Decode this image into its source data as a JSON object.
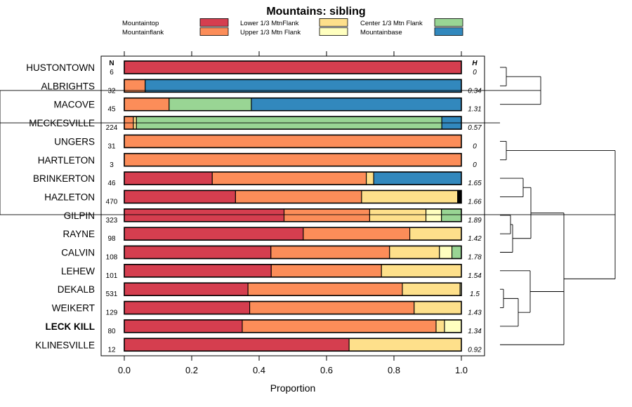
{
  "chart_data": {
    "type": "bar",
    "orientation": "horizontal",
    "stacked": true,
    "title": "Mountains: sibling",
    "xlabel": "Proportion",
    "xlim": [
      0,
      1
    ],
    "xticks": [
      "0.0",
      "0.2",
      "0.4",
      "0.6",
      "0.8",
      "1.0"
    ],
    "xtick_values": [
      0,
      0.2,
      0.4,
      0.6,
      0.8,
      1.0
    ],
    "n_header": "N",
    "h_header": "H",
    "highlighted_category": "LECK KILL",
    "legend": [
      {
        "name": "Mountaintop",
        "color": "#d53e4f"
      },
      {
        "name": "Mountainflank",
        "color": "#fc8d59"
      },
      {
        "name": "Lower 1/3 MtnFlank",
        "color": "#fee08b"
      },
      {
        "name": "Upper 1/3 Mtn Flank",
        "color": "#ffffbf"
      },
      {
        "name": "Center 1/3 Mtn Flank",
        "color": "#99d594"
      },
      {
        "name": "Mountainbase",
        "color": "#3288bd"
      }
    ],
    "extra_color": "#000000",
    "categories": [
      {
        "label": "HUSTONTOWN",
        "n": "6",
        "h": "0",
        "segments": [
          1.0,
          0,
          0,
          0,
          0,
          0
        ]
      },
      {
        "label": "ALBRIGHTS",
        "n": "32",
        "h": "0.34",
        "segments": [
          0,
          0.062,
          0,
          0,
          0,
          0.938
        ]
      },
      {
        "label": "MACOVE",
        "n": "45",
        "h": "1.31",
        "segments": [
          0,
          0.133,
          0,
          0,
          0.244,
          0.623
        ]
      },
      {
        "label": "MECKESVILLE",
        "n": "224",
        "h": "0.57",
        "segments": [
          0,
          0.027,
          0.009,
          0,
          0.906,
          0.058
        ]
      },
      {
        "label": "UNGERS",
        "n": "31",
        "h": "0",
        "segments": [
          0,
          1.0,
          0,
          0,
          0,
          0
        ]
      },
      {
        "label": "HARTLETON",
        "n": "3",
        "h": "0",
        "segments": [
          0,
          1.0,
          0,
          0,
          0,
          0
        ]
      },
      {
        "label": "BRINKERTON",
        "n": "46",
        "h": "1.65",
        "segments": [
          0.261,
          0.457,
          0.022,
          0,
          0,
          0.26
        ]
      },
      {
        "label": "HAZLETON",
        "n": "470",
        "h": "1.66",
        "segments": [
          0.33,
          0.374,
          0.285,
          0,
          0,
          0,
          0.011
        ]
      },
      {
        "label": "GILPIN",
        "n": "323",
        "h": "1.89",
        "segments": [
          0.474,
          0.254,
          0.167,
          0.046,
          0.059,
          0
        ]
      },
      {
        "label": "RAYNE",
        "n": "98",
        "h": "1.42",
        "segments": [
          0.531,
          0.316,
          0.153,
          0,
          0,
          0
        ]
      },
      {
        "label": "CALVIN",
        "n": "108",
        "h": "1.78",
        "segments": [
          0.435,
          0.352,
          0.148,
          0.037,
          0.028,
          0
        ]
      },
      {
        "label": "LEHEW",
        "n": "101",
        "h": "1.54",
        "segments": [
          0.436,
          0.327,
          0.237,
          0,
          0,
          0
        ]
      },
      {
        "label": "DEKALB",
        "n": "531",
        "h": "1.5",
        "segments": [
          0.367,
          0.458,
          0.171,
          0.004,
          0,
          0
        ]
      },
      {
        "label": "WEIKERT",
        "n": "129",
        "h": "1.43",
        "segments": [
          0.372,
          0.488,
          0.14,
          0,
          0,
          0
        ]
      },
      {
        "label": "LECK KILL",
        "n": "80",
        "h": "1.34",
        "segments": [
          0.35,
          0.575,
          0.025,
          0.05,
          0,
          0
        ]
      },
      {
        "label": "KLINESVILLE",
        "n": "12",
        "h": "0.92",
        "segments": [
          0.667,
          0,
          0.333,
          0,
          0,
          0
        ]
      }
    ],
    "dendrogram": "hierarchical clustering of the 16 rows shown at right"
  }
}
